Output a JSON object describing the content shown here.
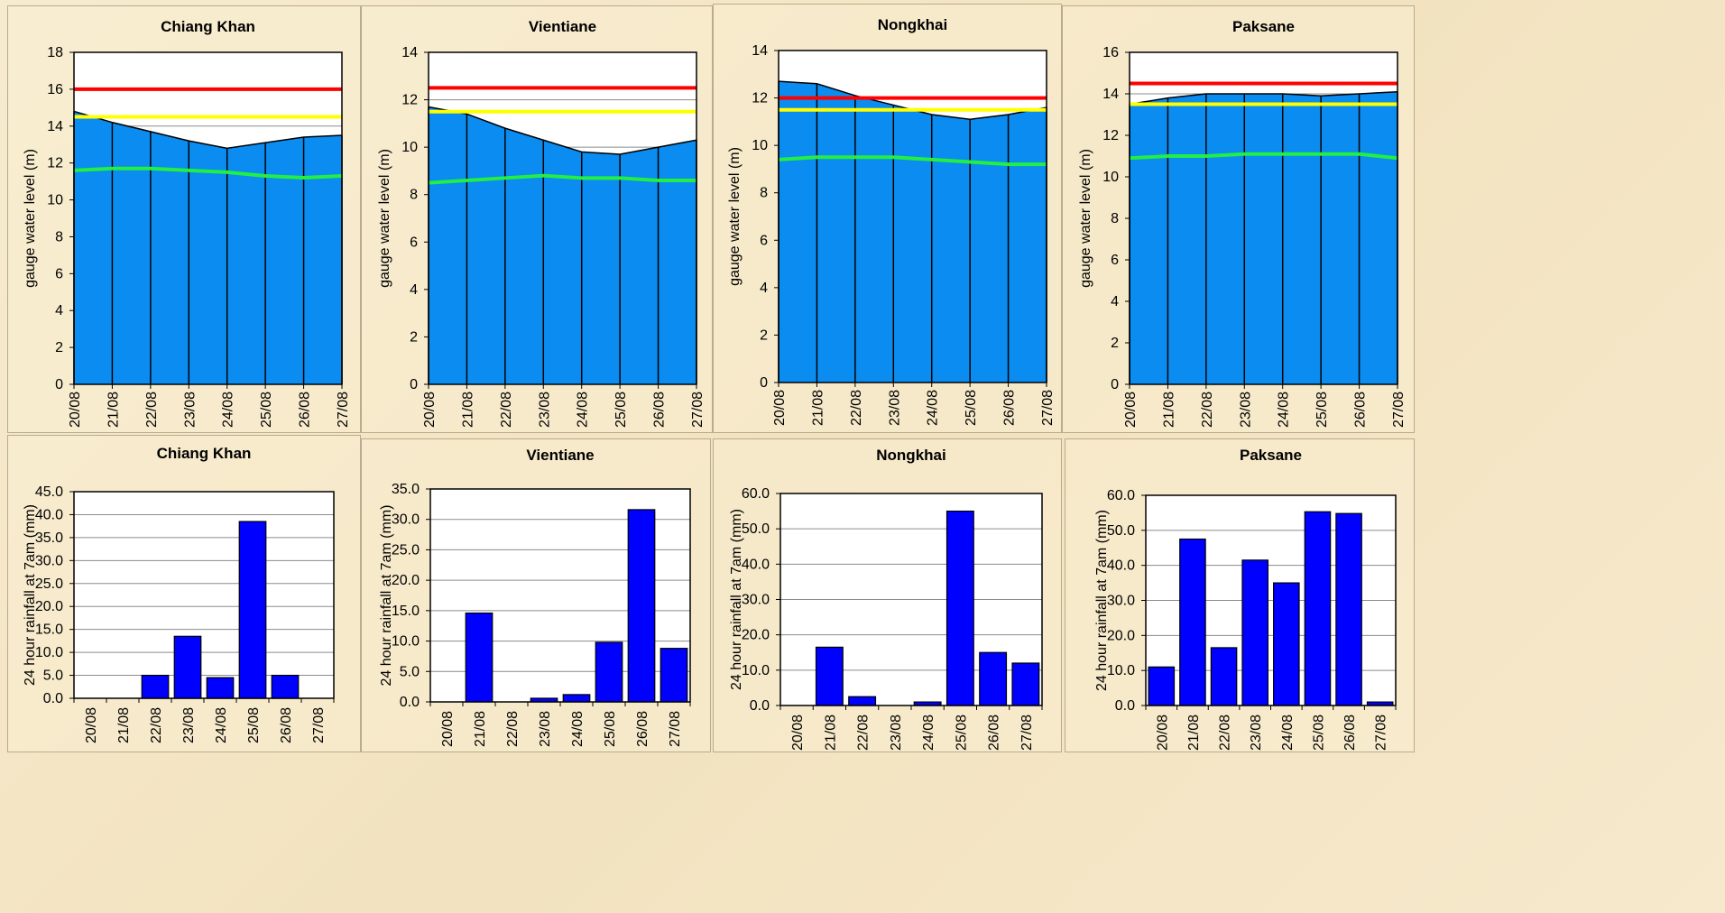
{
  "chart_data": [
    {
      "type": "area",
      "title": "Chiang Khan",
      "ylabel": "gauge  water level (m)",
      "ylim": [
        0,
        18
      ],
      "yticks": [
        "0",
        "2",
        "4",
        "6",
        "8",
        "10",
        "12",
        "14",
        "16",
        "18"
      ],
      "categories": [
        "20/08",
        "21/08",
        "22/08",
        "23/08",
        "24/08",
        "25/08",
        "26/08",
        "27/08"
      ],
      "grid": true,
      "series": [
        {
          "values": [
            14.8,
            14.2,
            13.7,
            13.2,
            12.8,
            13.1,
            13.4,
            13.5
          ],
          "color": "#0a8cf0"
        },
        {
          "values": [
            16.0,
            16.0,
            16.0,
            16.0,
            16.0,
            16.0,
            16.0,
            16.0
          ],
          "color": "#ff0000"
        },
        {
          "values": [
            14.5,
            14.5,
            14.5,
            14.5,
            14.5,
            14.5,
            14.5,
            14.5
          ],
          "color": "#ffff00"
        },
        {
          "values": [
            11.6,
            11.7,
            11.7,
            11.6,
            11.5,
            11.3,
            11.2,
            11.3
          ],
          "color": "#22ee44"
        }
      ]
    },
    {
      "type": "area",
      "title": "Vientiane",
      "ylabel": "gauge  water level (m)",
      "ylim": [
        0,
        14
      ],
      "yticks": [
        "0",
        "2",
        "4",
        "6",
        "8",
        "10",
        "12",
        "14"
      ],
      "categories": [
        "20/08",
        "21/08",
        "22/08",
        "23/08",
        "24/08",
        "25/08",
        "26/08",
        "27/08"
      ],
      "grid": true,
      "series": [
        {
          "values": [
            11.7,
            11.4,
            10.8,
            10.3,
            9.8,
            9.7,
            10.0,
            10.3
          ],
          "color": "#0a8cf0"
        },
        {
          "values": [
            12.5,
            12.5,
            12.5,
            12.5,
            12.5,
            12.5,
            12.5,
            12.5
          ],
          "color": "#ff0000"
        },
        {
          "values": [
            11.5,
            11.5,
            11.5,
            11.5,
            11.5,
            11.5,
            11.5,
            11.5
          ],
          "color": "#ffff00"
        },
        {
          "values": [
            8.5,
            8.6,
            8.7,
            8.8,
            8.7,
            8.7,
            8.6,
            8.6
          ],
          "color": "#22ee44"
        }
      ]
    },
    {
      "type": "area",
      "title": "Nongkhai",
      "ylabel": "gauge  water level (m)",
      "ylim": [
        0,
        14
      ],
      "yticks": [
        "0",
        "2",
        "4",
        "6",
        "8",
        "10",
        "12",
        "14"
      ],
      "categories": [
        "20/08",
        "21/08",
        "22/08",
        "23/08",
        "24/08",
        "25/08",
        "26/08",
        "27/08"
      ],
      "grid": true,
      "series": [
        {
          "values": [
            12.7,
            12.6,
            12.1,
            11.7,
            11.3,
            11.1,
            11.3,
            11.6
          ],
          "color": "#0a8cf0"
        },
        {
          "values": [
            12.0,
            12.0,
            12.0,
            12.0,
            12.0,
            12.0,
            12.0,
            12.0
          ],
          "color": "#ff0000"
        },
        {
          "values": [
            11.5,
            11.5,
            11.5,
            11.5,
            11.5,
            11.5,
            11.5,
            11.5
          ],
          "color": "#ffff00"
        },
        {
          "values": [
            9.4,
            9.5,
            9.5,
            9.5,
            9.4,
            9.3,
            9.2,
            9.2
          ],
          "color": "#22ee44"
        }
      ]
    },
    {
      "type": "area",
      "title": "Paksane",
      "ylabel": "gauge  water level (m)",
      "ylim": [
        0,
        16
      ],
      "yticks": [
        "0",
        "2",
        "4",
        "6",
        "8",
        "10",
        "12",
        "14",
        "16"
      ],
      "categories": [
        "20/08",
        "21/08",
        "22/08",
        "23/08",
        "24/08",
        "25/08",
        "26/08",
        "27/08"
      ],
      "grid": true,
      "series": [
        {
          "values": [
            13.5,
            13.8,
            14.0,
            14.0,
            14.0,
            13.9,
            14.0,
            14.1
          ],
          "color": "#0a8cf0"
        },
        {
          "values": [
            14.5,
            14.5,
            14.5,
            14.5,
            14.5,
            14.5,
            14.5,
            14.5
          ],
          "color": "#ff0000"
        },
        {
          "values": [
            13.5,
            13.5,
            13.5,
            13.5,
            13.5,
            13.5,
            13.5,
            13.5
          ],
          "color": "#ffff00"
        },
        {
          "values": [
            10.9,
            11.0,
            11.0,
            11.1,
            11.1,
            11.1,
            11.1,
            10.9
          ],
          "color": "#22ee44"
        }
      ]
    },
    {
      "type": "bar",
      "title": "Chiang Khan",
      "ylabel": "24 hour rainfall at 7am (mm)",
      "ylim": [
        0,
        45
      ],
      "yticks": [
        "0.0",
        "5.0",
        "10.0",
        "15.0",
        "20.0",
        "25.0",
        "30.0",
        "35.0",
        "40.0",
        "45.0"
      ],
      "categories": [
        "20/08",
        "21/08",
        "22/08",
        "23/08",
        "24/08",
        "25/08",
        "26/08",
        "27/08"
      ],
      "values": [
        0,
        0,
        5.0,
        13.5,
        4.5,
        38.5,
        5.0,
        0
      ],
      "color": "#0000ff",
      "grid": true
    },
    {
      "type": "bar",
      "title": "Vientiane",
      "ylabel": "24 hour rainfall at 7am (mm)",
      "ylim": [
        0,
        35
      ],
      "yticks": [
        "0.0",
        "5.0",
        "10.0",
        "15.0",
        "20.0",
        "25.0",
        "30.0",
        "35.0"
      ],
      "categories": [
        "20/08",
        "21/08",
        "22/08",
        "23/08",
        "24/08",
        "25/08",
        "26/08",
        "27/08"
      ],
      "values": [
        0,
        14.6,
        0,
        0.6,
        1.2,
        9.8,
        31.6,
        8.8
      ],
      "color": "#0000ff",
      "grid": true
    },
    {
      "type": "bar",
      "title": "Nongkhai",
      "ylabel": "24 hour rainfall at 7am (mm)",
      "ylim": [
        0,
        60
      ],
      "yticks": [
        "0.0",
        "10.0",
        "20.0",
        "30.0",
        "40.0",
        "50.0",
        "60.0"
      ],
      "categories": [
        "20/08",
        "21/08",
        "22/08",
        "23/08",
        "24/08",
        "25/08",
        "26/08",
        "27/08"
      ],
      "values": [
        0,
        16.5,
        2.5,
        0,
        1.0,
        55.0,
        15.0,
        12.0
      ],
      "color": "#0000ff",
      "grid": true
    },
    {
      "type": "bar",
      "title": "Paksane",
      "ylabel": "24 hour rainfall at 7am (mm)",
      "ylim": [
        0,
        60
      ],
      "yticks": [
        "0.0",
        "10.0",
        "20.0",
        "30.0",
        "40.0",
        "50.0",
        "60.0"
      ],
      "categories": [
        "20/08",
        "21/08",
        "22/08",
        "23/08",
        "24/08",
        "25/08",
        "26/08",
        "27/08"
      ],
      "values": [
        11.0,
        47.5,
        16.5,
        41.5,
        35.0,
        55.3,
        54.8,
        1.0
      ],
      "color": "#0000ff",
      "grid": true
    }
  ]
}
